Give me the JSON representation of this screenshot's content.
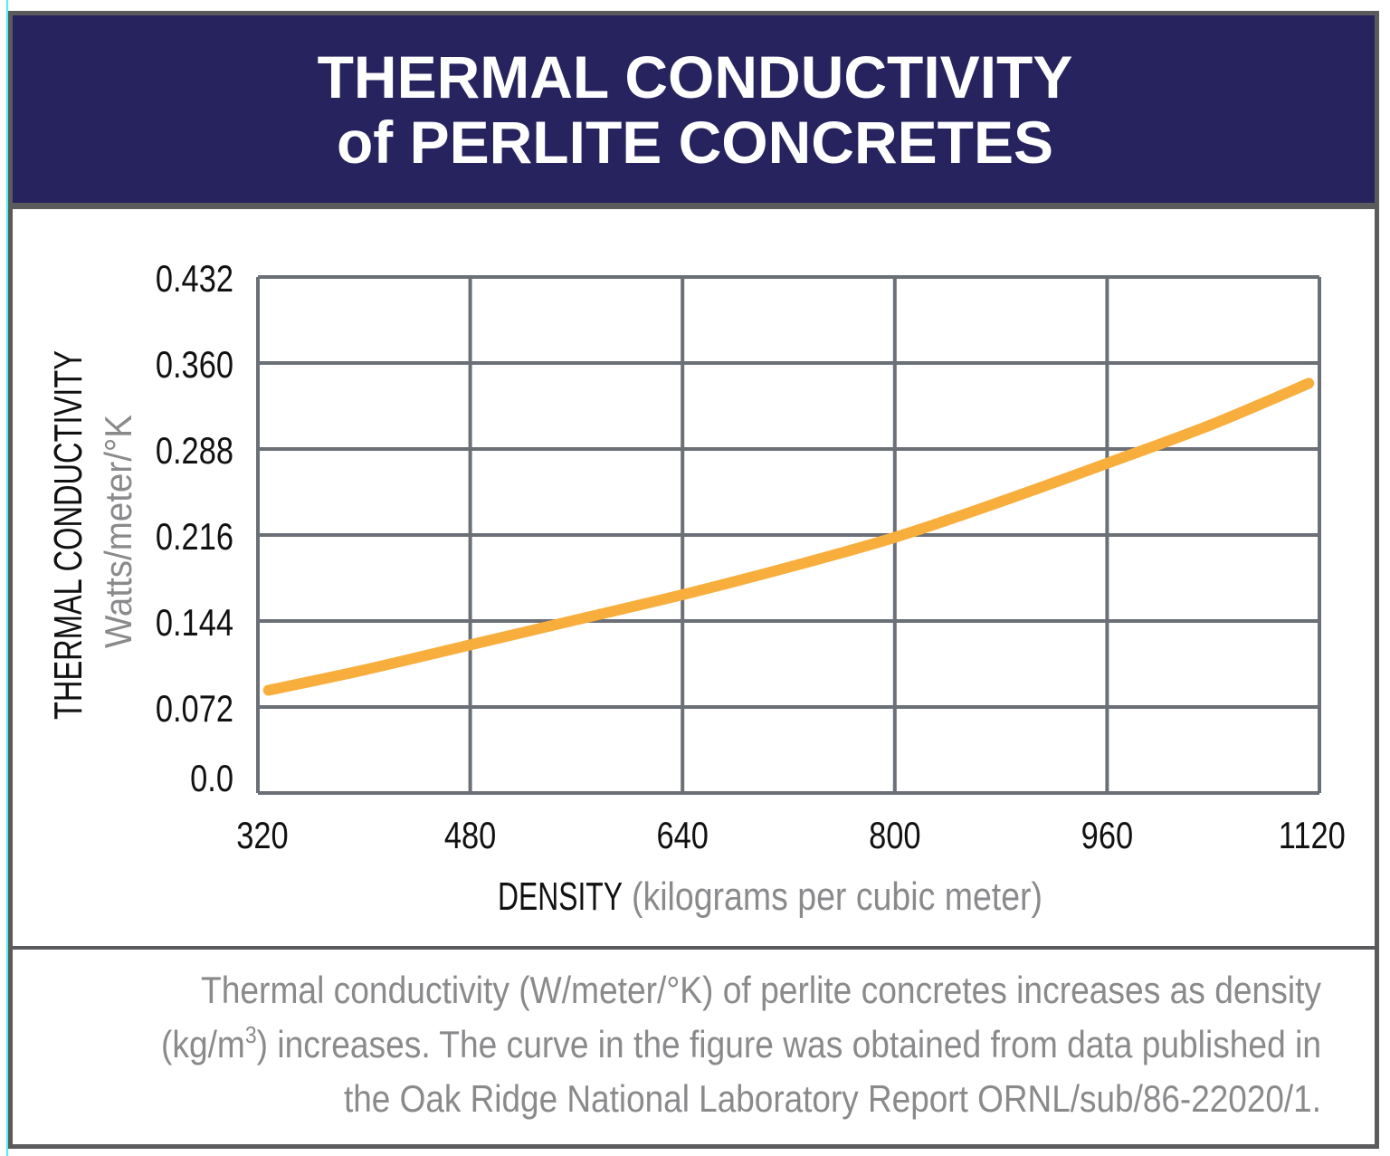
{
  "header": {
    "title_line1": "THERMAL CONDUCTIVITY",
    "title_line2": "of PERLITE CONCRETES"
  },
  "caption": {
    "line1": "Thermal conductivity (W/meter/°K) of perlite concretes increases as density",
    "line2_a": "(kg/m",
    "line2_sup": "3",
    "line2_b": ") increases. The curve in the figure was obtained from data published in",
    "line3": "the Oak Ridge National Laboratory Report ORNL/sub/86-22020/1."
  },
  "colors": {
    "header_bg": "#27235f",
    "border": "#5b5b5e",
    "grid": "#6b7077",
    "curve": "#f8ae3c",
    "caption_text": "#8a8a8c"
  },
  "chart_data": {
    "type": "line",
    "xlabel": "DENSITY",
    "xlabel_unit": "(kilograms per cubic meter)",
    "ylabel": "THERMAL CONDUCTIVITY",
    "ylabel_unit": "Watts/meter/°K",
    "xlim": [
      320,
      1120
    ],
    "ylim": [
      0,
      0.432
    ],
    "x_ticks": [
      "320",
      "480",
      "640",
      "800",
      "960",
      "1120"
    ],
    "y_ticks": [
      "0.0",
      "0.072",
      "0.144",
      "0.216",
      "0.288",
      "0.360",
      "0.432"
    ],
    "grid": true,
    "series": [
      {
        "x": [
          328,
          400,
          480,
          560,
          640,
          720,
          800,
          880,
          960,
          1040,
          1112
        ],
        "y": [
          0.086,
          0.103,
          0.124,
          0.145,
          0.166,
          0.189,
          0.214,
          0.244,
          0.276,
          0.309,
          0.343
        ]
      }
    ]
  }
}
